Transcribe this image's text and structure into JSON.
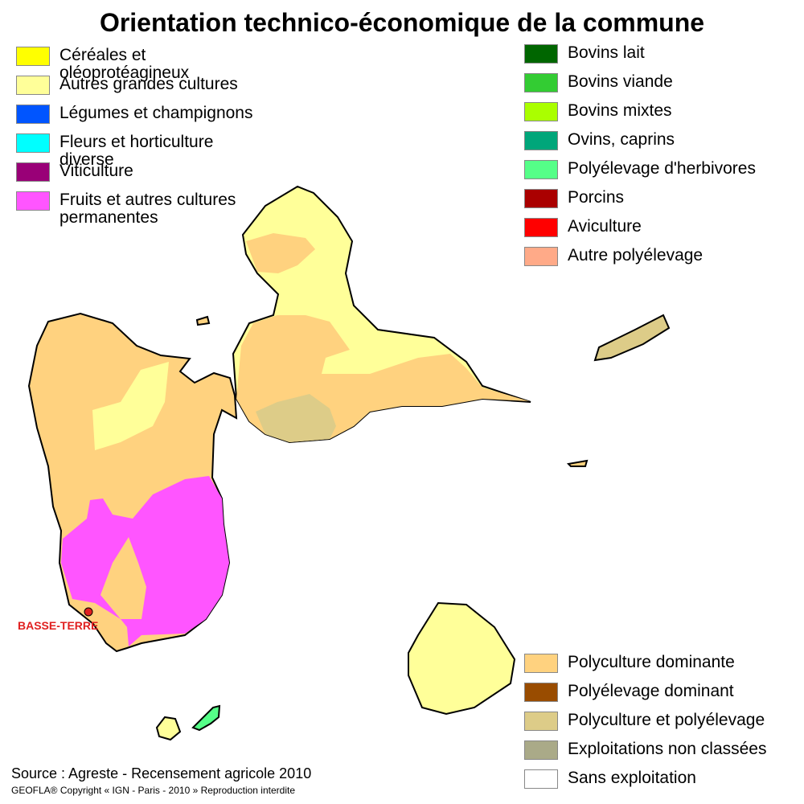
{
  "title": "Orientation technico-économique de la commune",
  "legend_groups": [
    {
      "items": [
        {
          "label": "Céréales et oléoprotéagineux",
          "color": "#ffff00"
        },
        {
          "label": "Autres grandes cultures",
          "color": "#ffff99"
        },
        {
          "label": "Légumes et champignons",
          "color": "#0055ff"
        },
        {
          "label": "Fleurs et horticulture diverse",
          "color": "#00ffff"
        },
        {
          "label": "Viticulture",
          "color": "#990077"
        },
        {
          "label": "Fruits et autres cultures permanentes",
          "color": "#ff55ff"
        }
      ]
    },
    {
      "items": [
        {
          "label": "Bovins lait",
          "color": "#006600"
        },
        {
          "label": "Bovins viande",
          "color": "#33cc33"
        },
        {
          "label": "Bovins mixtes",
          "color": "#aaff00"
        },
        {
          "label": "Ovins, caprins",
          "color": "#00a67a"
        },
        {
          "label": "Polyélevage d'herbivores",
          "color": "#55ff88"
        },
        {
          "label": "Porcins",
          "color": "#aa0000"
        },
        {
          "label": "Aviculture",
          "color": "#ff0000"
        },
        {
          "label": "Autre polyélevage",
          "color": "#ffaa88"
        }
      ]
    },
    {
      "items": [
        {
          "label": "Polyculture dominante",
          "color": "#ffd27f"
        },
        {
          "label": "Polyélevage dominant",
          "color": "#994c00"
        },
        {
          "label": "Polyculture et polyélevage",
          "color": "#ddcc88"
        },
        {
          "label": "Exploitations non classées",
          "color": "#aaaa88"
        },
        {
          "label": "Sans exploitation",
          "color": "#ffffff"
        }
      ]
    }
  ],
  "city": "BASSE-TERRE",
  "source": "Source : Agreste - Recensement agricole 2010",
  "copyright": "GEOFLA®  Copyright « IGN - Paris - 2010 »  Reproduction interdite"
}
